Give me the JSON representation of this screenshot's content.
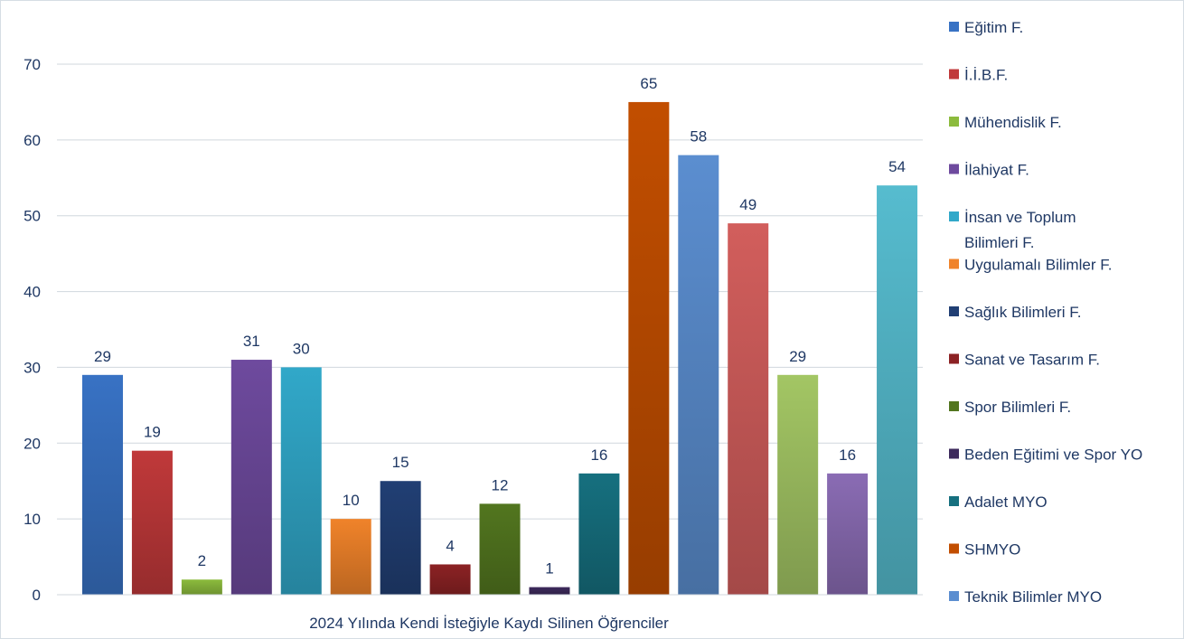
{
  "chart_data": {
    "type": "bar",
    "categories": [
      "2024 Yılında Kendi İsteğiyle Kaydı Silinen Öğrenciler"
    ],
    "series": [
      {
        "name": "Eğitim F.",
        "value": 29,
        "color": "#3872c4"
      },
      {
        "name": "İ.İ.B.F.",
        "value": 19,
        "color": "#c0393a"
      },
      {
        "name": "Mühendislik F.",
        "value": 2,
        "color": "#8cbb3d"
      },
      {
        "name": "İlahiyat F.",
        "value": 31,
        "color": "#6e4a9e"
      },
      {
        "name": "İnsan ve Toplum Bilimleri F.",
        "value": 30,
        "color": "#31a8c9"
      },
      {
        "name": "Uygulamalı Bilimler F.",
        "value": 10,
        "color": "#f0832a"
      },
      {
        "name": "Sağlık Bilimleri F.",
        "value": 15,
        "color": "#213f74"
      },
      {
        "name": "Sanat ve Tasarım F.",
        "value": 4,
        "color": "#8c2224"
      },
      {
        "name": "Spor Bilimleri F.",
        "value": 12,
        "color": "#52761f"
      },
      {
        "name": "Beden Eğitimi ve Spor YO",
        "value": 1,
        "color": "#3d2a5c"
      },
      {
        "name": "Adalet MYO",
        "value": 16,
        "color": "#16707f"
      },
      {
        "name": "SHMYO",
        "value": 65,
        "color": "#c24e00"
      },
      {
        "name": "Teknik Bilimler MYO",
        "value": 58,
        "color": "#5b8ed0"
      },
      {
        "name": "",
        "value": 49,
        "color": "#d25e5c"
      },
      {
        "name": "",
        "value": 29,
        "color": "#a3c664"
      },
      {
        "name": "",
        "value": 16,
        "color": "#8a6cb4"
      },
      {
        "name": "",
        "value": 54,
        "color": "#56bccf"
      }
    ],
    "ylim": [
      0,
      70
    ],
    "yticks": [
      0,
      10,
      20,
      30,
      40,
      50,
      60,
      70
    ],
    "grid": true,
    "legend_position": "right",
    "data_labels": true
  }
}
